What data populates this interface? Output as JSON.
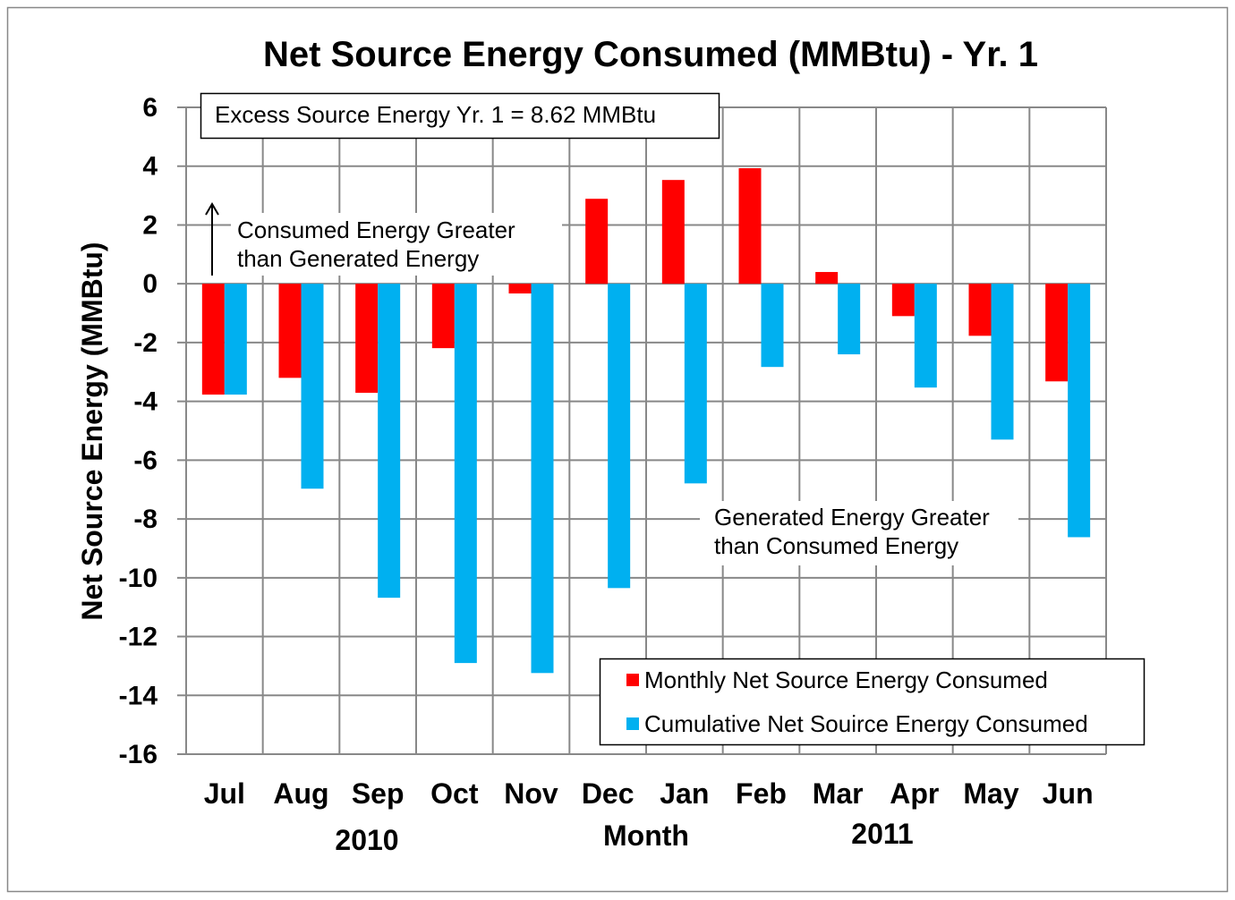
{
  "chart_data": {
    "type": "bar",
    "title": "Net Source Energy Consumed (MMBtu) - Yr. 1",
    "xlabel": "Month",
    "ylabel": "Net Source Energy (MMBtu)",
    "ylim": [
      -16,
      6
    ],
    "yticks": [
      6,
      4,
      2,
      0,
      -2,
      -4,
      -6,
      -8,
      -10,
      -12,
      -14,
      -16
    ],
    "grid": true,
    "categories": [
      "Jul",
      "Aug",
      "Sep",
      "Oct",
      "Nov",
      "Dec",
      "Jan",
      "Feb",
      "Mar",
      "Apr",
      "May",
      "Jun"
    ],
    "year_labels": [
      "2010",
      "2011"
    ],
    "series": [
      {
        "name": "Monthly Net Source Energy Consumed",
        "color": "#ff0000",
        "values": [
          -3.77,
          -3.2,
          -3.71,
          -2.19,
          -0.33,
          2.89,
          3.53,
          3.93,
          0.4,
          -1.1,
          -1.77,
          -3.32
        ]
      },
      {
        "name": "Cumulative Net Souirce Energy Consumed",
        "color": "#00b0f0",
        "values": [
          -3.77,
          -6.97,
          -10.68,
          -12.9,
          -13.24,
          -10.35,
          -6.79,
          -2.83,
          -2.4,
          -3.53,
          -5.3,
          -8.62
        ]
      }
    ],
    "annotations": {
      "excess": "Excess Source Energy Yr. 1 = 8.62 MMBtu",
      "consumed_line1": "Consumed Energy Greater",
      "consumed_line2": "than Generated Energy",
      "generated_line1": "Generated Energy Greater",
      "generated_line2": "than Consumed Energy"
    },
    "legend_position": "bottom-right"
  }
}
